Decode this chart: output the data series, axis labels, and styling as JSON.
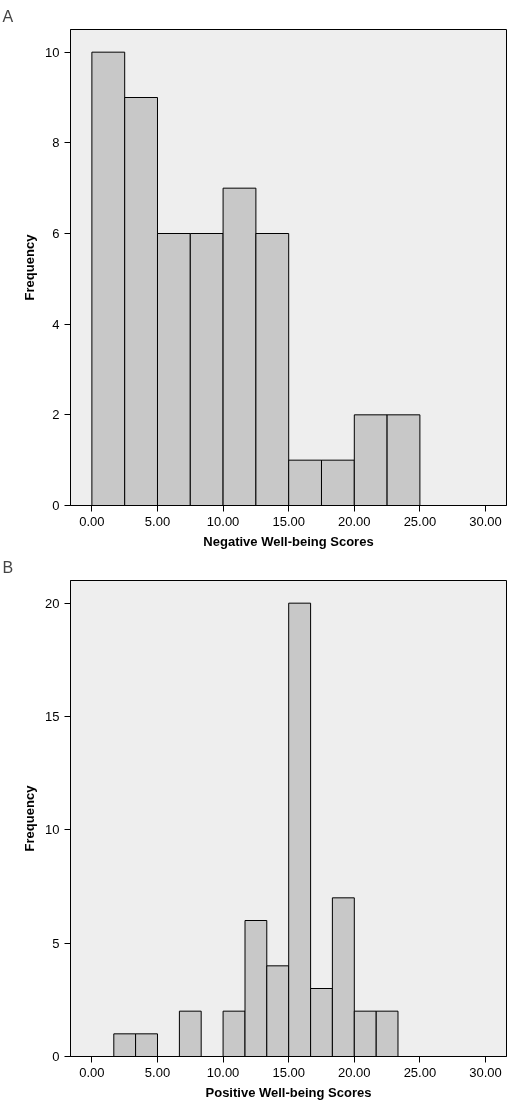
{
  "chart_data": [
    {
      "type": "histogram",
      "title": "A",
      "xlabel": "Negative Well-being Scores",
      "ylabel": "Frequency",
      "color": "#c8c8c8",
      "bins": [
        0,
        2.5,
        5,
        7.5,
        10,
        12.5,
        15,
        17.5,
        20,
        22.5,
        25
      ],
      "values": [
        10,
        9,
        6,
        6,
        7,
        6,
        1,
        1,
        2,
        2
      ],
      "xlim": [
        -1.63,
        31.6
      ],
      "ylim": [
        0,
        10.5
      ],
      "xticks": [
        {
          "value": 0,
          "label": "0.00"
        },
        {
          "value": 5,
          "label": "5.00"
        },
        {
          "value": 10,
          "label": "10.00"
        },
        {
          "value": 15,
          "label": "15.00"
        },
        {
          "value": 20,
          "label": "20.00"
        },
        {
          "value": 25,
          "label": "25.00"
        },
        {
          "value": 30,
          "label": "30.00"
        }
      ],
      "yticks": [
        0,
        2,
        4,
        6,
        8,
        10
      ],
      "grid": false
    },
    {
      "type": "histogram",
      "title": "B",
      "xlabel": "Positive Well-being Scores",
      "ylabel": "Frequency",
      "color": "#c8c8c8",
      "bins": [
        1.67,
        3.33,
        5,
        6.67,
        8.33,
        10,
        11.67,
        13.33,
        15,
        16.67,
        18.33,
        20,
        21.67,
        23.33
      ],
      "values": [
        1,
        1,
        0,
        2,
        0,
        2,
        6,
        4,
        20,
        3,
        7,
        2,
        2
      ],
      "xlim": [
        -1.63,
        31.6
      ],
      "ylim": [
        0,
        21
      ],
      "xticks": [
        {
          "value": 0,
          "label": "0.00"
        },
        {
          "value": 5,
          "label": "5.00"
        },
        {
          "value": 10,
          "label": "10.00"
        },
        {
          "value": 15,
          "label": "15.00"
        },
        {
          "value": 20,
          "label": "20.00"
        },
        {
          "value": 25,
          "label": "25.00"
        },
        {
          "value": 30,
          "label": "30.00"
        }
      ],
      "yticks": [
        0,
        5,
        10,
        15,
        20
      ],
      "grid": false
    }
  ]
}
